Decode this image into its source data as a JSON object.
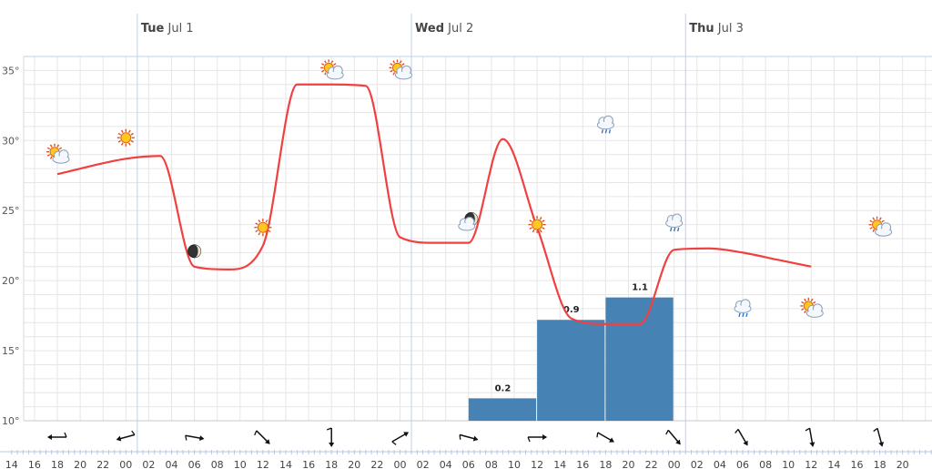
{
  "chart_data": {
    "type": "line",
    "days": [
      {
        "name": "Tue",
        "date": "Jul 1"
      },
      {
        "name": "Wed",
        "date": "Jul 2"
      },
      {
        "name": "Thu",
        "date": "Jul 3"
      }
    ],
    "y_ticks": [
      "10°",
      "15°",
      "20°",
      "25°",
      "30°",
      "35°"
    ],
    "ylim": [
      10,
      36
    ],
    "hour_labels": [
      "14",
      "16",
      "18",
      "20",
      "22",
      "00",
      "02",
      "04",
      "06",
      "08",
      "10",
      "12",
      "14",
      "16",
      "18",
      "20",
      "22",
      "00",
      "02",
      "04",
      "06",
      "08",
      "10",
      "12",
      "14",
      "16",
      "18",
      "20",
      "22",
      "00",
      "02",
      "04",
      "06",
      "08",
      "10",
      "12",
      "14",
      "16",
      "18",
      "20"
    ],
    "temperature": {
      "x_hours": [
        0,
        6,
        9,
        12,
        15,
        18,
        21,
        24,
        27,
        30,
        33,
        36,
        39,
        42,
        45,
        48,
        51,
        54,
        57,
        60,
        63,
        66
      ],
      "values": [
        27.6,
        28.7,
        28.9,
        21.0,
        20.8,
        22.5,
        34.0,
        34.0,
        33.9,
        23.1,
        22.7,
        22.7,
        30.1,
        23.8,
        17.3,
        16.9,
        16.9,
        22.2,
        22.3,
        22.0,
        21.5,
        21.0
      ]
    },
    "precipitation": {
      "labels": [
        "0.2",
        "0.9",
        "1.1"
      ],
      "values": [
        0.2,
        0.9,
        1.1
      ],
      "start_hours": [
        36,
        42,
        48
      ],
      "end_hours": [
        42,
        48,
        54
      ],
      "color": "#4682b4"
    },
    "symbols": [
      {
        "hour": 0,
        "temp": 29.0,
        "icon": "sun-cloud-icon"
      },
      {
        "hour": 6,
        "temp": 30.2,
        "icon": "sun-icon"
      },
      {
        "hour": 12,
        "temp": 22.1,
        "icon": "moon-icon"
      },
      {
        "hour": 18,
        "temp": 23.8,
        "icon": "sun-icon"
      },
      {
        "hour": 24,
        "temp": 35.0,
        "icon": "sun-cloud-icon"
      },
      {
        "hour": 30,
        "temp": 35.0,
        "icon": "sun-cloud-icon"
      },
      {
        "hour": 36,
        "temp": 24.2,
        "icon": "moon-cloud-icon"
      },
      {
        "hour": 42,
        "temp": 24.0,
        "icon": "sun-icon"
      },
      {
        "hour": 48,
        "temp": 31.3,
        "icon": "rain-cloud-icon"
      },
      {
        "hour": 54,
        "temp": 24.3,
        "icon": "rain-cloud-icon"
      },
      {
        "hour": 60,
        "temp": 18.2,
        "icon": "rain-cloud-icon"
      },
      {
        "hour": 66,
        "temp": 18.0,
        "icon": "sun-cloud-icon"
      },
      {
        "hour": 72,
        "temp": 23.8,
        "icon": "sun-cloud-icon"
      }
    ],
    "wind_directions_deg": [
      270,
      255,
      100,
      135,
      180,
      60,
      105,
      90,
      120,
      140,
      150,
      170,
      165
    ],
    "colors": {
      "line": "#f04040",
      "grid": "#e6e6e6",
      "day_line": "#c0d0e8",
      "axis": "#c0d0e8"
    },
    "grid": true
  }
}
